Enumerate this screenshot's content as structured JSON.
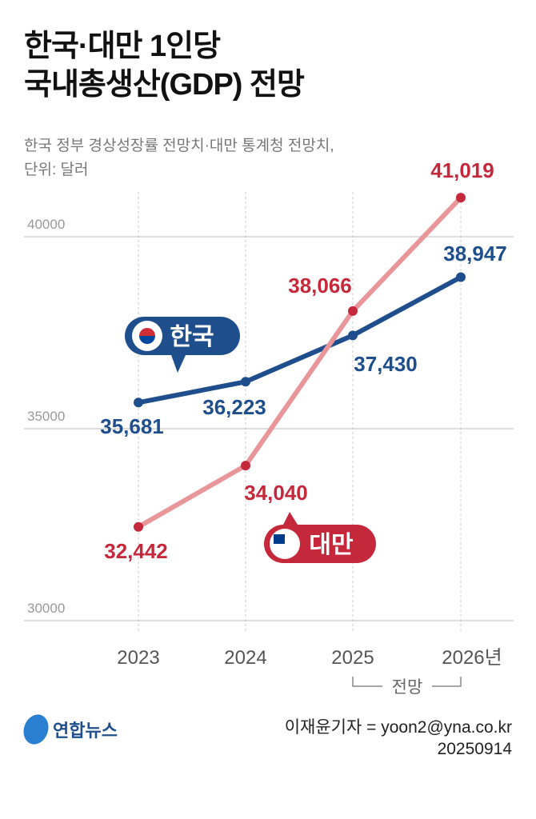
{
  "title_lines": [
    "한국·대만 1인당",
    "국내총생산(GDP) 전망"
  ],
  "subtitle_lines": [
    "한국 정부 경상성장률 전망치·대만 통계청 전망치,",
    "단위: 달러"
  ],
  "chart_data": {
    "type": "line",
    "title": "한국·대만 1인당 국내총생산(GDP) 전망",
    "ylabel": "단위: 달러",
    "categories": [
      "2023",
      "2024",
      "2025",
      "2026"
    ],
    "x_tick_labels": [
      "2023",
      "2024",
      "2025",
      "2026년"
    ],
    "y_ticks": [
      "30000",
      "35000",
      "40000"
    ],
    "ylim": [
      30000,
      40000
    ],
    "grid": "horizontal",
    "forecast_label": "전망",
    "forecast_range": [
      "2025",
      "2026"
    ],
    "series": [
      {
        "name": "한국",
        "color": "#1f4e8c",
        "values": [
          35681,
          36223,
          37430,
          38947
        ],
        "labels": [
          "35,681",
          "36,223",
          "37,430",
          "38,947"
        ]
      },
      {
        "name": "대만",
        "color": "#e8969a",
        "label_color": "#c6283b",
        "values": [
          32442,
          34040,
          38066,
          41019
        ],
        "labels": [
          "32,442",
          "34,040",
          "38,066",
          "41,019"
        ]
      }
    ]
  },
  "footer": {
    "logo": "연합뉴스",
    "credit": "이재윤기자 = yoon2@yna.co.kr",
    "date": "20250914"
  }
}
